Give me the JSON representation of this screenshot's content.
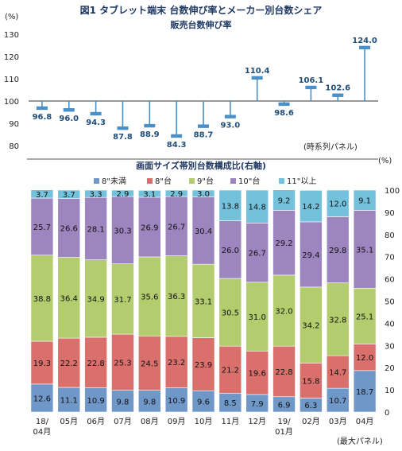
{
  "figure_title": "図1 タブレット端末 台数伸び率とメーカー別台数シェア",
  "colors": {
    "growth": "#4a90c8",
    "label": "#1f4e79",
    "s1": "#6f97c8",
    "s2": "#d9706c",
    "s3": "#b3cc6e",
    "s4": "#9d86bf",
    "s5": "#74c1dc"
  },
  "chart_data": [
    {
      "type": "line",
      "title": "販売台数伸び率",
      "ylabel": "(%)",
      "annotation": "(時系列パネル)",
      "ylim": [
        80,
        130
      ],
      "yticks": [
        80,
        90,
        100,
        110,
        120,
        130
      ],
      "baseline": 100,
      "categories": [
        "18/04月",
        "05月",
        "06月",
        "07月",
        "08月",
        "09月",
        "10月",
        "11月",
        "12月",
        "19/01月",
        "02月",
        "03月",
        "04月"
      ],
      "values": [
        96.8,
        96.0,
        94.3,
        87.8,
        88.9,
        84.3,
        88.7,
        93.0,
        110.4,
        98.6,
        106.1,
        102.6,
        124.0
      ],
      "value_labels": [
        "96.8",
        "96.0",
        "94.3",
        "87.8",
        "88.9",
        "84.3",
        "88.7",
        "93.0",
        "110.4",
        "98.6",
        "106.1",
        "102.6",
        "124.0"
      ]
    },
    {
      "type": "bar",
      "stacked": true,
      "title": "画面サイズ帯別台数構成比(右軸)",
      "ylabel": "(%)",
      "annotation": "(最大パネル)",
      "ylim": [
        0,
        100
      ],
      "yticks": [
        0,
        10,
        20,
        30,
        40,
        50,
        60,
        70,
        80,
        90,
        100
      ],
      "categories": [
        "18/04月",
        "05月",
        "06月",
        "07月",
        "08月",
        "09月",
        "10月",
        "11月",
        "12月",
        "19/01月",
        "02月",
        "03月",
        "04月"
      ],
      "category_lines": [
        [
          "18/",
          "04月"
        ],
        [
          "05月"
        ],
        [
          "06月"
        ],
        [
          "07月"
        ],
        [
          "08月"
        ],
        [
          "09月"
        ],
        [
          "10月"
        ],
        [
          "11月"
        ],
        [
          "12月"
        ],
        [
          "19/",
          "01月"
        ],
        [
          "02月"
        ],
        [
          "03月"
        ],
        [
          "04月"
        ]
      ],
      "series": [
        {
          "name": "8\"未満",
          "values": [
            12.6,
            11.1,
            10.9,
            9.8,
            9.8,
            10.9,
            9.6,
            8.5,
            7.9,
            6.9,
            6.3,
            10.7,
            18.7
          ],
          "labels": [
            "12.6",
            "11.1",
            "10.9",
            "9.8",
            "9.8",
            "10.9",
            "9.6",
            "8.5",
            "7.9",
            "6.9",
            "6.3",
            "10.7",
            "18.7"
          ]
        },
        {
          "name": "8\"台",
          "values": [
            19.3,
            22.2,
            22.8,
            25.3,
            24.5,
            23.2,
            23.9,
            21.2,
            19.6,
            22.8,
            15.8,
            14.7,
            12.0
          ],
          "labels": [
            "19.3",
            "22.2",
            "22.8",
            "25.3",
            "24.5",
            "23.2",
            "23.9",
            "21.2",
            "19.6",
            "22.8",
            "15.8",
            "14.7",
            "12.0"
          ]
        },
        {
          "name": "9\"台",
          "values": [
            38.8,
            36.4,
            34.9,
            31.7,
            35.6,
            36.3,
            33.1,
            30.5,
            31.0,
            32.0,
            34.2,
            32.8,
            25.1
          ],
          "labels": [
            "38.8",
            "36.4",
            "34.9",
            "31.7",
            "35.6",
            "36.3",
            "33.1",
            "30.5",
            "31.0",
            "32.0",
            "34.2",
            "32.8",
            "25.1"
          ]
        },
        {
          "name": "10\"台",
          "values": [
            25.7,
            26.6,
            28.1,
            30.3,
            26.9,
            26.7,
            30.4,
            26.0,
            26.7,
            29.2,
            29.4,
            29.8,
            35.1
          ],
          "labels": [
            "25.7",
            "26.6",
            "28.1",
            "30.3",
            "26.9",
            "26.7",
            "30.4",
            "26.0",
            "26.7",
            "29.2",
            "29.4",
            "29.8",
            "35.1"
          ]
        },
        {
          "name": "11\"以上",
          "values": [
            3.7,
            3.7,
            3.3,
            2.9,
            3.1,
            2.9,
            3.0,
            13.8,
            14.8,
            9.2,
            14.2,
            12.0,
            9.1
          ],
          "labels": [
            "3.7",
            "3.7",
            "3.3",
            "2.9",
            "3.1",
            "2.9",
            "3.0",
            "13.8",
            "14.8",
            "9.2",
            "14.2",
            "12.0",
            "9.1"
          ]
        }
      ]
    }
  ]
}
